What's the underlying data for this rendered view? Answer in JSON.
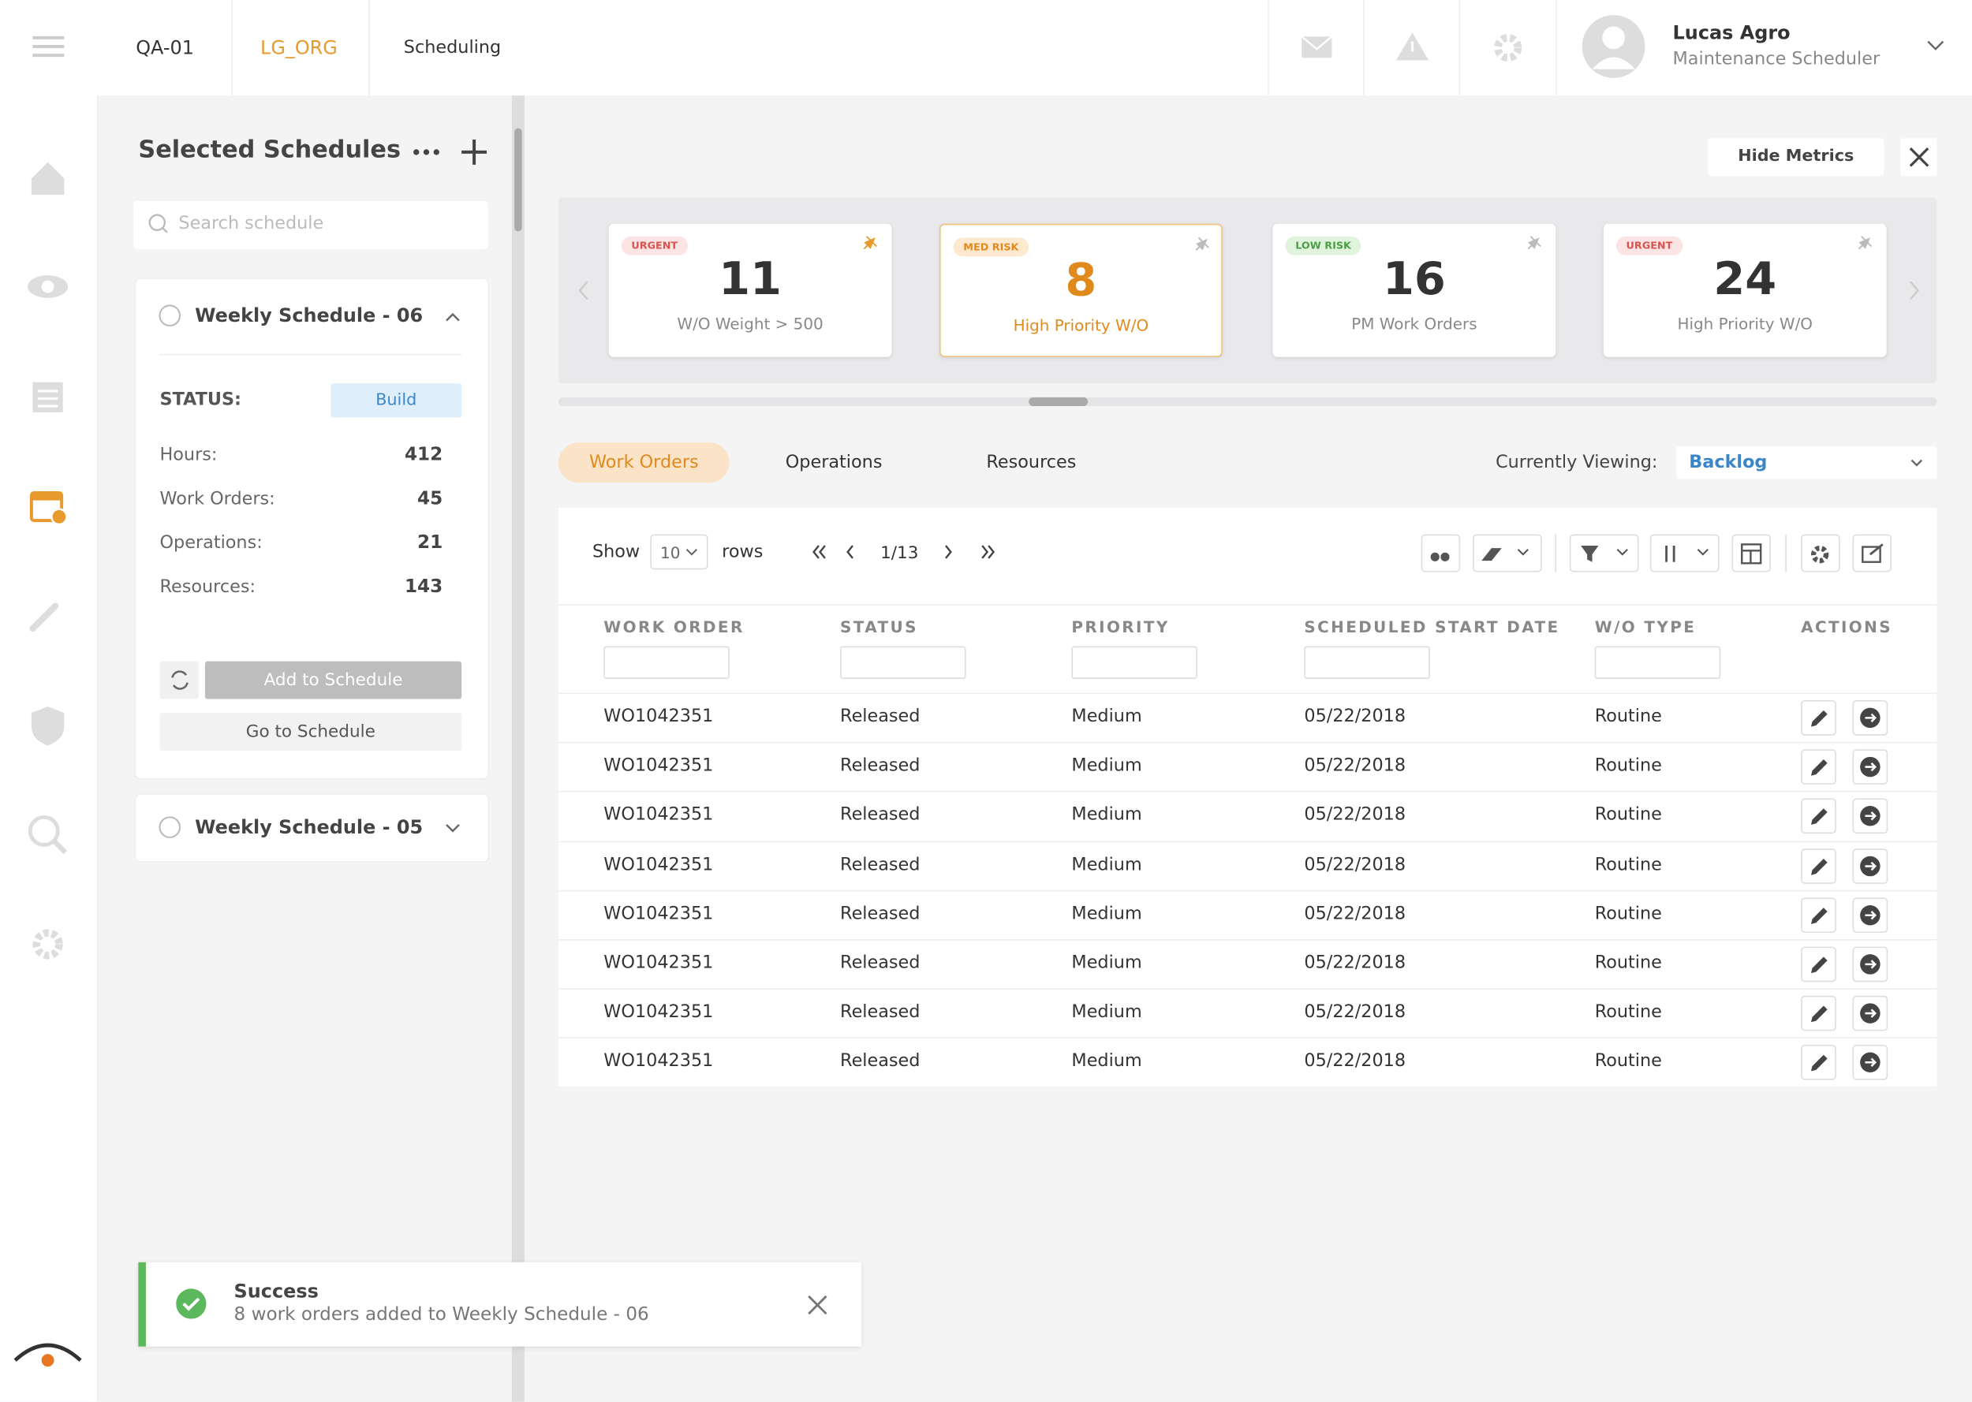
{
  "header": {
    "env": "QA-01",
    "org": "LG_ORG",
    "module": "Scheduling",
    "user": {
      "name": "Lucas Agro",
      "role": "Maintenance Scheduler"
    }
  },
  "schedules_panel": {
    "title": "Selected Schedules",
    "search_placeholder": "Search schedule",
    "schedules": [
      {
        "name": "Weekly Schedule - 06",
        "status_label": "STATUS:",
        "status": "Build",
        "stats": [
          {
            "label": "Hours:",
            "value": 412
          },
          {
            "label": "Work Orders:",
            "value": 45
          },
          {
            "label": "Operations:",
            "value": 21
          },
          {
            "label": "Resources:",
            "value": 143
          }
        ],
        "add_button": "Add to Schedule",
        "go_button": "Go to Schedule"
      },
      {
        "name": "Weekly Schedule - 05"
      }
    ]
  },
  "metrics": {
    "hide_button": "Hide Metrics",
    "cards": [
      {
        "badge": "URGENT",
        "value": 11,
        "label": "W/O Weight > 500"
      },
      {
        "badge": "MED RISK",
        "value": 8,
        "label": "High Priority W/O"
      },
      {
        "badge": "LOW RISK",
        "value": 16,
        "label": "PM Work Orders"
      },
      {
        "badge": "URGENT",
        "value": 24,
        "label": "High Priority W/O"
      }
    ]
  },
  "tabs": [
    "Work Orders",
    "Operations",
    "Resources"
  ],
  "viewing": {
    "label": "Currently Viewing:",
    "value": "Backlog"
  },
  "table": {
    "show": "Show",
    "rows_per_page": 10,
    "rows_label": "rows",
    "page": "1/13",
    "columns": [
      "WORK ORDER",
      "STATUS",
      "PRIORITY",
      "SCHEDULED START DATE",
      "W/O TYPE",
      "ACTIONS"
    ],
    "rows": [
      [
        "WO1042351",
        "Released",
        "Medium",
        "05/22/2018",
        "Routine"
      ],
      [
        "WO1042351",
        "Released",
        "Medium",
        "05/22/2018",
        "Routine"
      ],
      [
        "WO1042351",
        "Released",
        "Medium",
        "05/22/2018",
        "Routine"
      ],
      [
        "WO1042351",
        "Released",
        "Medium",
        "05/22/2018",
        "Routine"
      ],
      [
        "WO1042351",
        "Released",
        "Medium",
        "05/22/2018",
        "Routine"
      ],
      [
        "WO1042351",
        "Released",
        "Medium",
        "05/22/2018",
        "Routine"
      ],
      [
        "WO1042351",
        "Released",
        "Medium",
        "05/22/2018",
        "Routine"
      ],
      [
        "WO1042351",
        "Released",
        "Medium",
        "05/22/2018",
        "Routine"
      ]
    ]
  },
  "toast": {
    "title": "Success",
    "message": "8 work orders added to Weekly Schedule - 06"
  }
}
